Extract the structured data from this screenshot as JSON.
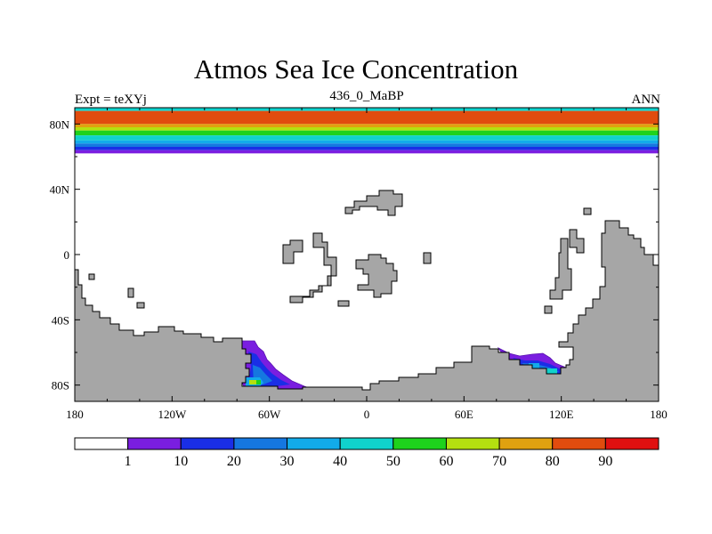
{
  "chart_data": {
    "type": "heatmap",
    "title": "Atmos Sea Ice Concentration",
    "left_string": "Expt = teXYj",
    "center_string": "436_0_MaBP",
    "right_string": "ANN",
    "x_range": [
      -180,
      180
    ],
    "y_range": [
      -90,
      90
    ],
    "x_ticks": [
      {
        "value": -180,
        "label": "180"
      },
      {
        "value": -120,
        "label": "120W"
      },
      {
        "value": -60,
        "label": "60W"
      },
      {
        "value": 0,
        "label": "0"
      },
      {
        "value": 60,
        "label": "60E"
      },
      {
        "value": 120,
        "label": "120E"
      },
      {
        "value": 180,
        "label": "180"
      }
    ],
    "y_ticks": [
      {
        "value": 80,
        "label": "80N"
      },
      {
        "value": 40,
        "label": "40N"
      },
      {
        "value": 0,
        "label": "0"
      },
      {
        "value": -40,
        "label": "40S"
      },
      {
        "value": -80,
        "label": "80S"
      }
    ],
    "land_color": "#a6a6a6",
    "levels": [
      1,
      10,
      20,
      30,
      40,
      50,
      60,
      70,
      80,
      90
    ],
    "colors": [
      "#ffffff",
      "#7a1ee0",
      "#1a2ee6",
      "#1577e0",
      "#12abea",
      "#10d2cc",
      "#1ed21c",
      "#b4e010",
      "#e0a110",
      "#e14c0e",
      "#e01010"
    ],
    "north_ice_bands": [
      {
        "lat_top": 90,
        "lat_bottom": 88,
        "value": 45
      },
      {
        "lat_top": 88,
        "lat_bottom": 80,
        "value": 85
      },
      {
        "lat_top": 80,
        "lat_bottom": 78,
        "value": 75
      },
      {
        "lat_top": 78,
        "lat_bottom": 76,
        "value": 65
      },
      {
        "lat_top": 76,
        "lat_bottom": 73,
        "value": 55
      },
      {
        "lat_top": 73,
        "lat_bottom": 70,
        "value": 45
      },
      {
        "lat_top": 70,
        "lat_bottom": 68,
        "value": 35
      },
      {
        "lat_top": 68,
        "lat_bottom": 66,
        "value": 25
      },
      {
        "lat_top": 66,
        "lat_bottom": 64,
        "value": 15
      },
      {
        "lat_top": 64,
        "lat_bottom": 62,
        "value": 5
      }
    ]
  }
}
